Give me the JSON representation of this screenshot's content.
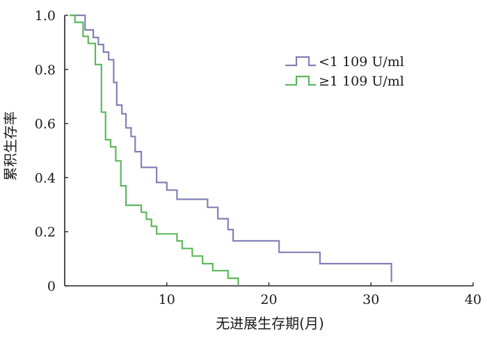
{
  "chart_data": {
    "type": "line",
    "step": true,
    "xlabel": "无进展生存期(月)",
    "ylabel": "累积生存率",
    "xlim": [
      0,
      40
    ],
    "ylim": [
      0,
      1.0
    ],
    "x_ticks": [
      {
        "value": 10,
        "label": "10"
      },
      {
        "value": 20,
        "label": "20"
      },
      {
        "value": 30,
        "label": "30"
      },
      {
        "value": 40,
        "label": "40"
      }
    ],
    "y_ticks": [
      {
        "value": 0,
        "label": "0"
      },
      {
        "value": 0.2,
        "label": "0.2"
      },
      {
        "value": 0.4,
        "label": "0.4"
      },
      {
        "value": 0.6,
        "label": "0.6"
      },
      {
        "value": 0.8,
        "label": "0.8"
      },
      {
        "value": 1.0,
        "label": "1.0"
      }
    ],
    "grid": false,
    "legend_position": "top-right",
    "series": [
      {
        "name": "<1 109 U/ml",
        "color": "#8080b8",
        "x": [
          0.5,
          2.0,
          2.8,
          3.3,
          3.8,
          4.3,
          4.8,
          5.1,
          5.6,
          6.0,
          6.5,
          6.9,
          7.5,
          9.0,
          10.0,
          11.0,
          14.0,
          15.0,
          16.0,
          16.5,
          21.0,
          25.0,
          32.0
        ],
        "y": [
          1.0,
          0.946,
          0.918,
          0.892,
          0.864,
          0.836,
          0.752,
          0.668,
          0.636,
          0.584,
          0.552,
          0.496,
          0.438,
          0.382,
          0.354,
          0.32,
          0.29,
          0.248,
          0.208,
          0.166,
          0.124,
          0.082,
          0.014
        ]
      },
      {
        "name": "≥1 109 U/ml",
        "color": "#5cb85c",
        "x": [
          0.5,
          1.0,
          1.8,
          2.3,
          3.0,
          3.6,
          4.0,
          4.5,
          5.0,
          5.5,
          6.0,
          7.5,
          8.0,
          8.5,
          9.0,
          11.0,
          11.5,
          12.5,
          13.5,
          14.5,
          16.0,
          17.0
        ],
        "y": [
          1.0,
          0.974,
          0.922,
          0.896,
          0.818,
          0.642,
          0.54,
          0.514,
          0.462,
          0.37,
          0.298,
          0.272,
          0.246,
          0.22,
          0.192,
          0.166,
          0.138,
          0.11,
          0.082,
          0.056,
          0.028,
          0.0
        ]
      }
    ]
  }
}
